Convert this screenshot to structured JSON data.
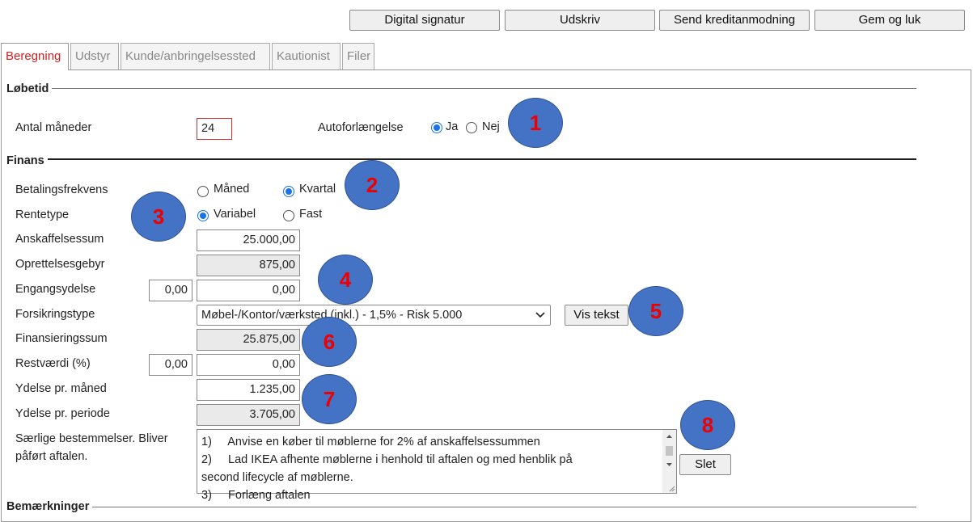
{
  "toolbar": {
    "buttons": [
      "Digital signatur",
      "Udskriv",
      "Send kreditanmodning",
      "Gem og luk"
    ]
  },
  "tabs": [
    "Beregning",
    "Udstyr",
    "Kunde/anbringelsessted",
    "Kautionist",
    "Filer"
  ],
  "lobetid": {
    "title": "Løbetid",
    "months_label": "Antal måneder",
    "months_value": "24",
    "auto_label": "Autoforlængelse",
    "auto_options": [
      "Ja",
      "Nej"
    ]
  },
  "finans": {
    "title": "Finans",
    "payment_label": "Betalingsfrekvens",
    "payment_options": [
      "Måned",
      "Kvartal"
    ],
    "rate_label": "Rentetype",
    "rate_options": [
      "Variabel",
      "Fast"
    ],
    "rows": [
      {
        "label": "Anskaffelsessum",
        "value": "25.000,00"
      },
      {
        "label": "Oprettelsesgebyr",
        "value": "875,00"
      },
      {
        "label": "Engangsydelse",
        "small": "0,00",
        "value": "0,00"
      },
      {
        "label": "Forsikringstype",
        "select": "Møbel-/Kontor/værksted (inkl.) - 1,5% - Risk 5.000",
        "button": "Vis tekst"
      },
      {
        "label": "Finansieringssum",
        "value": "25.875,00"
      },
      {
        "label": "Restværdi (%)",
        "small": "0,00",
        "value": "0,00"
      },
      {
        "label": "Ydelse pr. måned",
        "value": "1.235,00"
      },
      {
        "label": "Ydelse pr. periode",
        "value": "3.705,00"
      }
    ],
    "special_label": [
      "Særlige bestemmelser. Bliver",
      "påført aftalen."
    ],
    "special_text": [
      "1)     Anvise en køber til møblerne for 2% af anskaffelsessummen",
      "2)     Lad IKEA afhente møblerne i henhold til aftalen og med henblik på",
      "second lifecycle af møblerne.",
      "3)     Forlæng aftalen"
    ],
    "delete_button": "Slet"
  },
  "remarks": {
    "title": "Bemærkninger"
  },
  "badges": [
    "1",
    "2",
    "3",
    "4",
    "5",
    "6",
    "7",
    "8"
  ]
}
